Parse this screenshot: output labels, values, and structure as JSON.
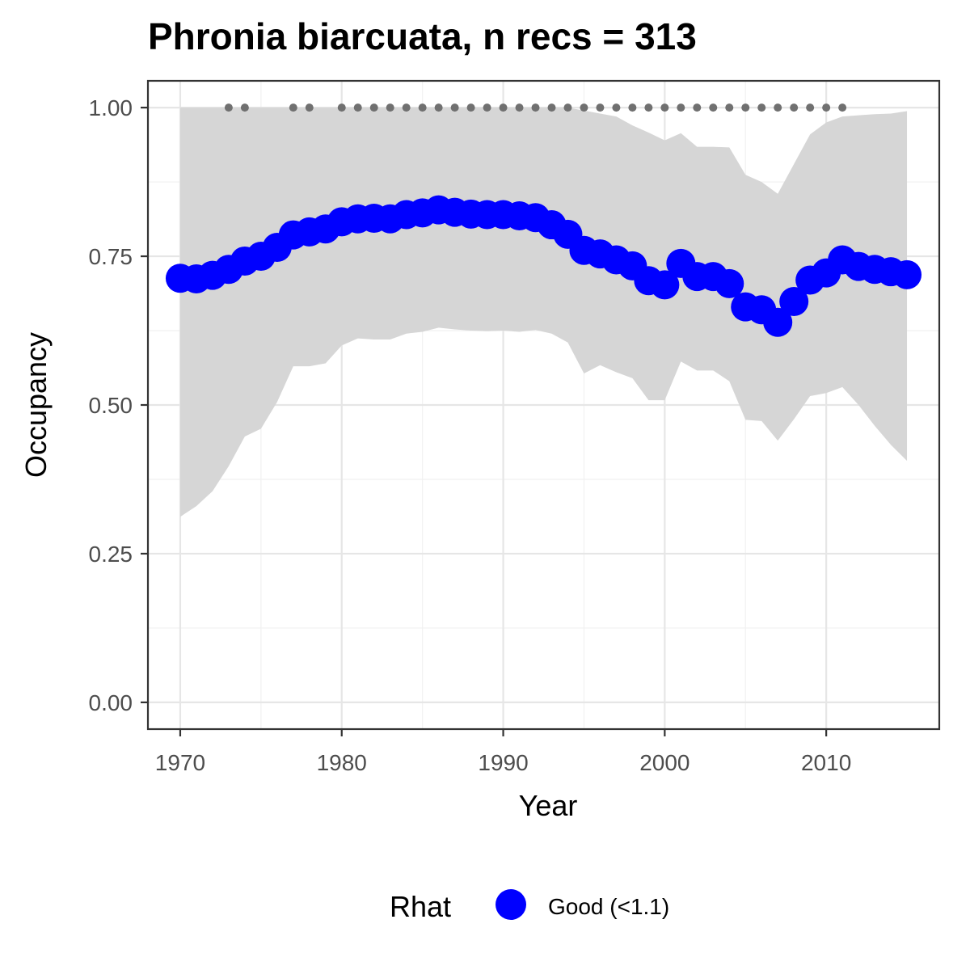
{
  "chart_data": {
    "type": "line",
    "title": "Phronia biarcuata, n recs = 313",
    "xlabel": "Year",
    "ylabel": "Occupancy",
    "xlim": [
      1968,
      2017
    ],
    "ylim": [
      -0.045,
      1.045
    ],
    "x_ticks": [
      1970,
      1980,
      1990,
      2000,
      2010
    ],
    "y_ticks": [
      0.0,
      0.25,
      0.5,
      0.75,
      1.0
    ],
    "x_tick_labels": [
      "1970",
      "1980",
      "1990",
      "2000",
      "2010"
    ],
    "y_tick_labels": [
      "0.00",
      "0.25",
      "0.50",
      "0.75",
      "1.00"
    ],
    "grid": true,
    "years": [
      1970,
      1971,
      1972,
      1973,
      1974,
      1975,
      1976,
      1977,
      1978,
      1979,
      1980,
      1981,
      1982,
      1983,
      1984,
      1985,
      1986,
      1987,
      1988,
      1989,
      1990,
      1991,
      1992,
      1993,
      1994,
      1995,
      1996,
      1997,
      1998,
      1999,
      2000,
      2001,
      2002,
      2003,
      2004,
      2005,
      2006,
      2007,
      2008,
      2009,
      2010,
      2011,
      2012,
      2013,
      2014,
      2015
    ],
    "series": [
      {
        "name": "Good (<1.1)",
        "values": [
          0.713,
          0.712,
          0.718,
          0.728,
          0.742,
          0.75,
          0.765,
          0.786,
          0.791,
          0.796,
          0.808,
          0.813,
          0.814,
          0.813,
          0.82,
          0.823,
          0.828,
          0.824,
          0.821,
          0.82,
          0.82,
          0.818,
          0.815,
          0.803,
          0.787,
          0.76,
          0.754,
          0.744,
          0.734,
          0.709,
          0.702,
          0.738,
          0.716,
          0.716,
          0.704,
          0.665,
          0.66,
          0.639,
          0.674,
          0.71,
          0.722,
          0.744,
          0.733,
          0.728,
          0.724,
          0.719
        ]
      }
    ],
    "ribbon": {
      "lower": [
        0.312,
        0.33,
        0.355,
        0.397,
        0.447,
        0.46,
        0.505,
        0.565,
        0.565,
        0.57,
        0.6,
        0.612,
        0.61,
        0.61,
        0.62,
        0.623,
        0.63,
        0.627,
        0.625,
        0.624,
        0.625,
        0.623,
        0.626,
        0.62,
        0.605,
        0.553,
        0.567,
        0.555,
        0.545,
        0.508,
        0.508,
        0.573,
        0.558,
        0.558,
        0.54,
        0.475,
        0.473,
        0.44,
        0.476,
        0.515,
        0.52,
        0.53,
        0.5,
        0.465,
        0.433,
        0.406
      ],
      "upper": [
        1.0,
        1.0,
        1.0,
        1.0,
        1.0,
        1.0,
        1.0,
        1.0,
        1.0,
        1.0,
        1.0,
        1.0,
        1.0,
        1.0,
        1.0,
        1.0,
        1.0,
        1.0,
        1.0,
        1.0,
        1.0,
        1.0,
        1.0,
        1.0,
        1.0,
        0.995,
        0.99,
        0.985,
        0.97,
        0.958,
        0.945,
        0.957,
        0.934,
        0.934,
        0.933,
        0.887,
        0.875,
        0.855,
        0.905,
        0.955,
        0.975,
        0.985,
        0.987,
        0.989,
        0.99,
        0.994
      ]
    },
    "record_years": [
      1973,
      1974,
      1977,
      1978,
      1980,
      1981,
      1982,
      1983,
      1984,
      1985,
      1986,
      1987,
      1988,
      1989,
      1990,
      1991,
      1992,
      1993,
      1994,
      1995,
      1996,
      1997,
      1998,
      1999,
      2000,
      2001,
      2002,
      2003,
      2004,
      2005,
      2006,
      2007,
      2008,
      2009,
      2010,
      2011
    ],
    "record_level": 1.0,
    "legend": {
      "title": "Rhat",
      "placement": "bottom",
      "entries": [
        {
          "label": "Good (<1.1)",
          "color": "#0000ff"
        }
      ]
    },
    "colors": {
      "series": "#0000ff",
      "ribbon": "#d6d6d6",
      "records": "#707070",
      "grid_major": "#e6e6e6",
      "grid_minor": "#f1f1f1",
      "panel_border": "#333333"
    }
  }
}
